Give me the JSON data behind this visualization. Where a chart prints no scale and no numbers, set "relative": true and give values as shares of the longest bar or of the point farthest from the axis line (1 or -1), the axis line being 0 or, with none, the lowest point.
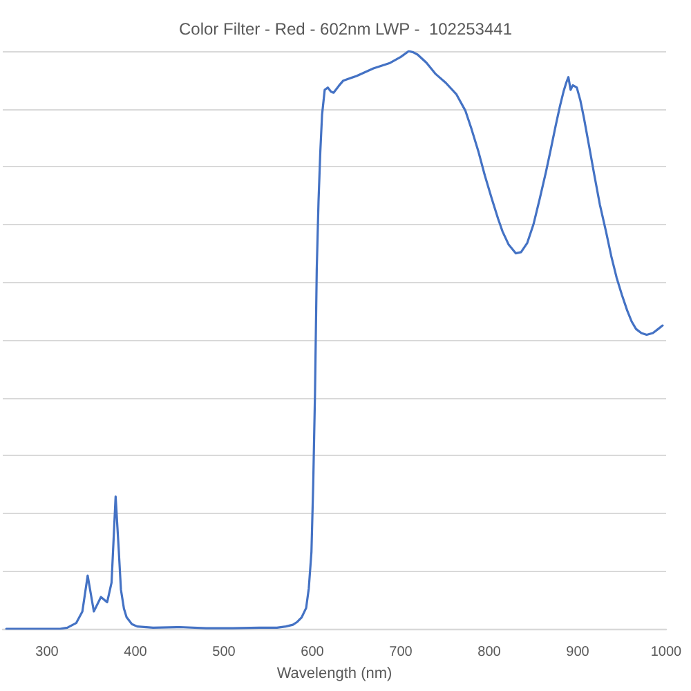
{
  "chart_data": {
    "type": "line",
    "title": "Color Filter - Red - 602nm LWP -  102253441",
    "xlabel": "Wavelength (nm)",
    "x": [
      254,
      280,
      300,
      315,
      323,
      333,
      340,
      346,
      353,
      361,
      368,
      373,
      377.6,
      381,
      383.6,
      387,
      390,
      396,
      402,
      420,
      450,
      480,
      510,
      540,
      560,
      570,
      578,
      583,
      588,
      593,
      596,
      599,
      601,
      603,
      605,
      607,
      609,
      611,
      614,
      617.5,
      621,
      624,
      630,
      635,
      650,
      669,
      687,
      700,
      709,
      714,
      719,
      729,
      739,
      751,
      763,
      773,
      780,
      788,
      795,
      803,
      810,
      815,
      822,
      830,
      836,
      843,
      850,
      857,
      864,
      870,
      875,
      880,
      884,
      887,
      889.5,
      892,
      894.5,
      899,
      903,
      907,
      913,
      919,
      925,
      932,
      938,
      944,
      950,
      956,
      961,
      966,
      972,
      978,
      985,
      991,
      996
    ],
    "values": [
      0.0,
      0.0,
      0.0,
      0.0,
      0.002,
      0.01,
      0.03,
      0.092,
      0.03,
      0.055,
      0.046,
      0.08,
      0.229,
      0.14,
      0.068,
      0.035,
      0.02,
      0.008,
      0.004,
      0.002,
      0.003,
      0.001,
      0.001,
      0.002,
      0.002,
      0.004,
      0.007,
      0.012,
      0.02,
      0.036,
      0.07,
      0.133,
      0.25,
      0.406,
      0.623,
      0.74,
      0.825,
      0.89,
      0.933,
      0.937,
      0.93,
      0.928,
      0.94,
      0.949,
      0.957,
      0.97,
      0.979,
      0.99,
      1.0,
      0.998,
      0.994,
      0.98,
      0.961,
      0.945,
      0.925,
      0.897,
      0.865,
      0.825,
      0.785,
      0.744,
      0.71,
      0.688,
      0.665,
      0.65,
      0.652,
      0.668,
      0.7,
      0.744,
      0.79,
      0.833,
      0.87,
      0.905,
      0.93,
      0.945,
      0.955,
      0.933,
      0.941,
      0.937,
      0.915,
      0.885,
      0.835,
      0.784,
      0.735,
      0.688,
      0.645,
      0.608,
      0.578,
      0.551,
      0.532,
      0.519,
      0.512,
      0.509,
      0.512,
      0.519,
      0.525
    ],
    "color": "#4472c4",
    "relative": true,
    "xlim": [
      250,
      1000
    ],
    "xticks": [
      300,
      400,
      500,
      600,
      700,
      800,
      900,
      1000
    ],
    "grid": "y",
    "marker": "none",
    "line_style": "solid"
  }
}
